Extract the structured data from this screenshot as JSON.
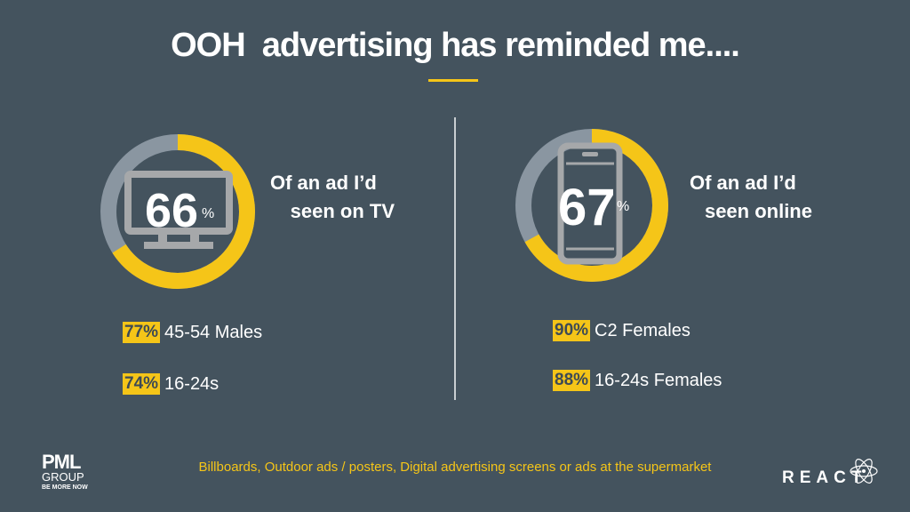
{
  "title": "OOH  advertising has reminded me....",
  "colors": {
    "accent": "#f5c518",
    "track": "#8a96a1",
    "background": "#44535e"
  },
  "left": {
    "icon": "tv-icon",
    "percent": 66,
    "value": "66",
    "unit": "%",
    "label_line1": "Of an ad I’d",
    "label_line2": "seen on TV",
    "stats": [
      {
        "value": "77%",
        "label": "45-54 Males"
      },
      {
        "value": "74%",
        "label": "16-24s"
      }
    ]
  },
  "right": {
    "icon": "smartphone-icon",
    "percent": 67,
    "value": "67",
    "unit": "%",
    "label_line1": "Of an ad I’d",
    "label_line2": "seen online",
    "stats": [
      {
        "value": "90%",
        "label": "C2 Females"
      },
      {
        "value": "88%",
        "label": "16-24s Females"
      }
    ]
  },
  "footer": "Billboards, Outdoor ads / posters, Digital advertising screens or ads at the supermarket",
  "logos": {
    "left_line1": "PML",
    "left_line2": "GROUP",
    "left_line3": "BE MORE NOW",
    "right": "REACT"
  }
}
